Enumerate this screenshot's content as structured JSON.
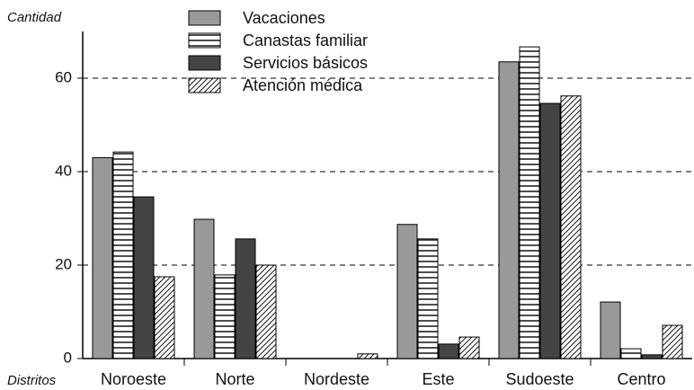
{
  "chart_data": {
    "type": "bar",
    "ylabel": "Cantidad",
    "xlabel": "Distritos",
    "categories": [
      "Noroeste",
      "Norte",
      "Nordeste",
      "Este",
      "Sudoeste",
      "Centro"
    ],
    "series": [
      {
        "name": "Vacaciones",
        "color": "#999999",
        "pattern": "solid",
        "values": [
          43,
          29.8,
          0,
          28.7,
          63.5,
          12.1
        ]
      },
      {
        "name": "Canastas familiar",
        "color": "#222222",
        "pattern": "horizontal-lines",
        "values": [
          44.2,
          17.9,
          0,
          25.6,
          66.7,
          2.1
        ]
      },
      {
        "name": "Servicios básicos",
        "color": "#444444",
        "pattern": "solid",
        "values": [
          34.6,
          25.6,
          0,
          3.1,
          54.6,
          0.8
        ]
      },
      {
        "name": "Atención médica",
        "color": "#222222",
        "pattern": "diagonal-lines",
        "values": [
          17.5,
          20,
          1,
          4.6,
          56.2,
          7.1
        ]
      }
    ],
    "ylim": [
      0,
      70
    ],
    "yticks": [
      0,
      20,
      40,
      60
    ],
    "grid": true,
    "grid_style": "dashed"
  }
}
